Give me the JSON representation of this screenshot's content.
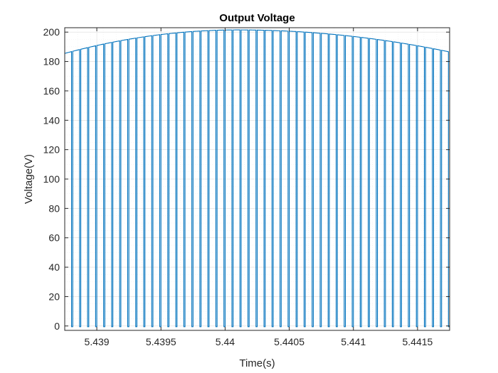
{
  "chart_data": {
    "type": "line",
    "title": "Output Voltage",
    "xlabel": "Time(s)",
    "ylabel": "Voltage(V)",
    "xlim": [
      5.43875,
      5.44175
    ],
    "ylim": [
      -3,
      203
    ],
    "xticks": [
      5.439,
      5.4395,
      5.44,
      5.4405,
      5.441,
      5.4415
    ],
    "xtick_labels": [
      "5.439",
      "5.4395",
      "5.44",
      "5.4405",
      "5.441",
      "5.4415"
    ],
    "yticks": [
      0,
      20,
      40,
      60,
      80,
      100,
      120,
      140,
      160,
      180,
      200
    ],
    "ytick_labels": [
      "0",
      "20",
      "40",
      "60",
      "80",
      "100",
      "120",
      "140",
      "160",
      "180",
      "200"
    ],
    "grid": true,
    "series": [
      {
        "color": "#0072BD",
        "pulse_period_s": 6.25e-05,
        "pulse_duty": 0.85,
        "pulse_low_value": -0.5,
        "envelope": {
          "peak_value": 201.5,
          "peak_time": 5.4401,
          "value_at_start": 185.5,
          "value_at_end": 186.5
        }
      }
    ]
  }
}
